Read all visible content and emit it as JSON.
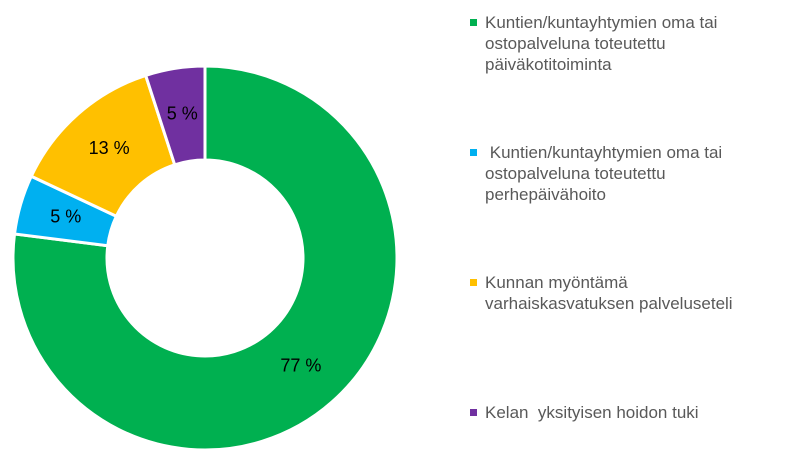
{
  "chart_data": {
    "type": "donut",
    "categories": [
      "Kuntien/kuntayhtymien oma tai ostopalveluna toteutettu päiväkotitoiminta",
      " Kuntien/kuntayhtymien oma tai ostopalveluna toteutettu perhepäivähoito",
      "Kunnan myöntämä varhaiskasvatuksen palveluseteli",
      "Kelan  yksityisen hoidon tuki"
    ],
    "values": [
      77,
      5,
      13,
      5
    ],
    "value_labels": [
      "77 %",
      "5 %",
      "13 %",
      "5 %"
    ],
    "colors": [
      "#00b050",
      "#00b0f0",
      "#ffc000",
      "#7030a0"
    ],
    "legend": "right"
  }
}
